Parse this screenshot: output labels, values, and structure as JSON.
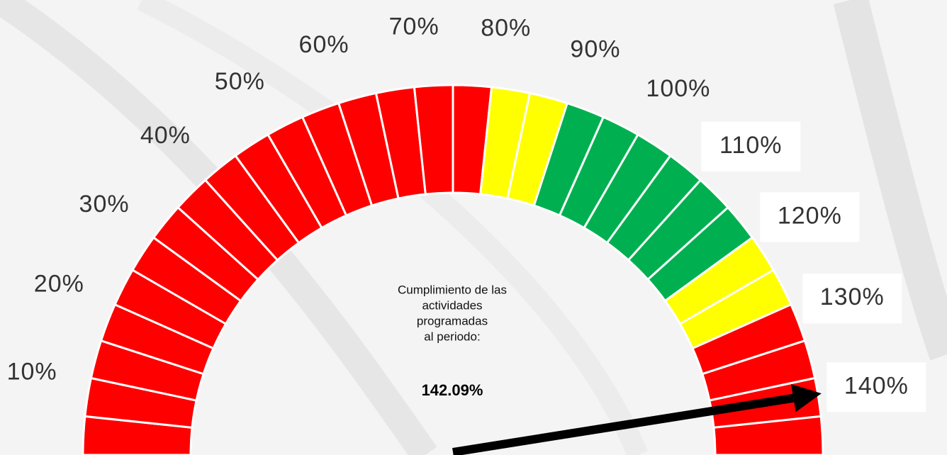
{
  "chart_data": {
    "type": "gauge",
    "lim": [
      0,
      150
    ],
    "divisions": 30,
    "bands": [
      {
        "from": 0,
        "to": 80,
        "color": "#ff0000"
      },
      {
        "from": 80,
        "to": 90,
        "color": "#ffff00"
      },
      {
        "from": 90,
        "to": 120,
        "color": "#00b050"
      },
      {
        "from": 120,
        "to": 130,
        "color": "#ffff00"
      },
      {
        "from": 130,
        "to": 150,
        "color": "#ff0000"
      }
    ],
    "ticks": [
      {
        "value": 10,
        "label": "10%"
      },
      {
        "value": 20,
        "label": "20%"
      },
      {
        "value": 30,
        "label": "30%"
      },
      {
        "value": 40,
        "label": "40%"
      },
      {
        "value": 50,
        "label": "50%"
      },
      {
        "value": 60,
        "label": "60%"
      },
      {
        "value": 70,
        "label": "70%"
      },
      {
        "value": 80,
        "label": "80%"
      },
      {
        "value": 90,
        "label": "90%"
      },
      {
        "value": 100,
        "label": "100%"
      },
      {
        "value": 110,
        "label": "110%"
      },
      {
        "value": 120,
        "label": "120%"
      },
      {
        "value": 130,
        "label": "130%"
      },
      {
        "value": 140,
        "label": "140%"
      }
    ],
    "caption": [
      "Cumplimiento de las",
      "actividades",
      "programadas",
      "al periodo:"
    ],
    "value": 142.09,
    "value_label": "142.09%",
    "needle_color": "#000000"
  }
}
